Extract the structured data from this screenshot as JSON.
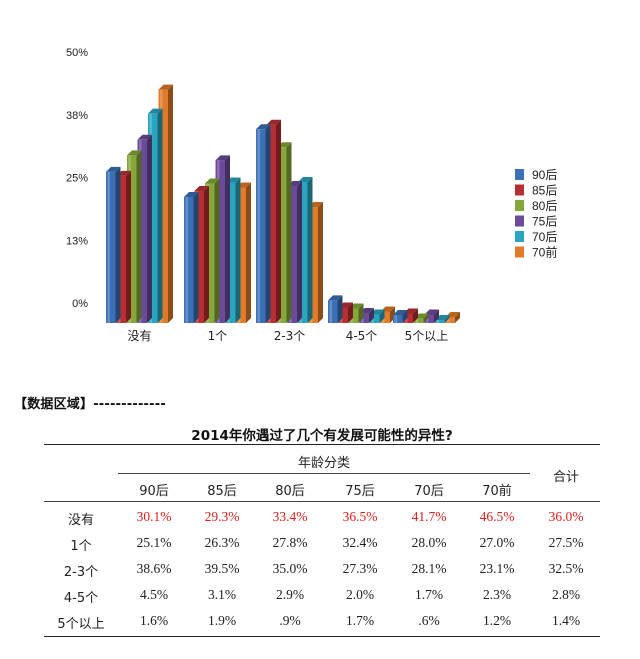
{
  "chart_data": {
    "type": "bar",
    "categories": [
      "没有",
      "1个",
      "2-3个",
      "4-5个",
      "5个以上"
    ],
    "y_ticks": [
      "50%",
      "38%",
      "25%",
      "13%",
      "0%"
    ],
    "ylim": [
      0,
      50
    ],
    "series": [
      {
        "name": "90后",
        "color": "#3b6fb6",
        "values": [
          30.1,
          25.1,
          38.6,
          4.5,
          1.6
        ]
      },
      {
        "name": "85后",
        "color": "#b72f33",
        "values": [
          29.3,
          26.3,
          39.5,
          3.1,
          1.9
        ]
      },
      {
        "name": "80后",
        "color": "#86a83a",
        "values": [
          33.4,
          27.8,
          35.0,
          2.9,
          0.9
        ]
      },
      {
        "name": "75后",
        "color": "#6b4a9a",
        "values": [
          36.5,
          32.4,
          27.3,
          2.0,
          1.7
        ]
      },
      {
        "name": "70后",
        "color": "#2aa5bf",
        "values": [
          41.7,
          28.0,
          28.1,
          1.7,
          0.6
        ]
      },
      {
        "name": "70前",
        "color": "#e07b2a",
        "values": [
          46.5,
          27.0,
          23.1,
          2.3,
          1.2
        ]
      }
    ],
    "legend_position": "right"
  },
  "data_section": {
    "header": "【数据区域】-------------",
    "title": "2014年你遇过了几个有发展可能性的异性?",
    "group_label": "年龄分类",
    "total_label": "合计",
    "columns": [
      "90后",
      "85后",
      "80后",
      "75后",
      "70后",
      "70前"
    ],
    "rows": [
      {
        "label": "没有",
        "values": [
          "30.1%",
          "29.3%",
          "33.4%",
          "36.5%",
          "41.7%",
          "46.5%"
        ],
        "total": "36.0%",
        "highlight": true
      },
      {
        "label": "1个",
        "values": [
          "25.1%",
          "26.3%",
          "27.8%",
          "32.4%",
          "28.0%",
          "27.0%"
        ],
        "total": "27.5%",
        "highlight": false
      },
      {
        "label": "2-3个",
        "values": [
          "38.6%",
          "39.5%",
          "35.0%",
          "27.3%",
          "28.1%",
          "23.1%"
        ],
        "total": "32.5%",
        "highlight": false
      },
      {
        "label": "4-5个",
        "values": [
          "4.5%",
          "3.1%",
          "2.9%",
          "2.0%",
          "1.7%",
          "2.3%"
        ],
        "total": "2.8%",
        "highlight": false
      },
      {
        "label": "5个以上",
        "values": [
          "1.6%",
          "1.9%",
          ".9%",
          "1.7%",
          ".6%",
          "1.2%"
        ],
        "total": "1.4%",
        "highlight": false
      }
    ]
  }
}
